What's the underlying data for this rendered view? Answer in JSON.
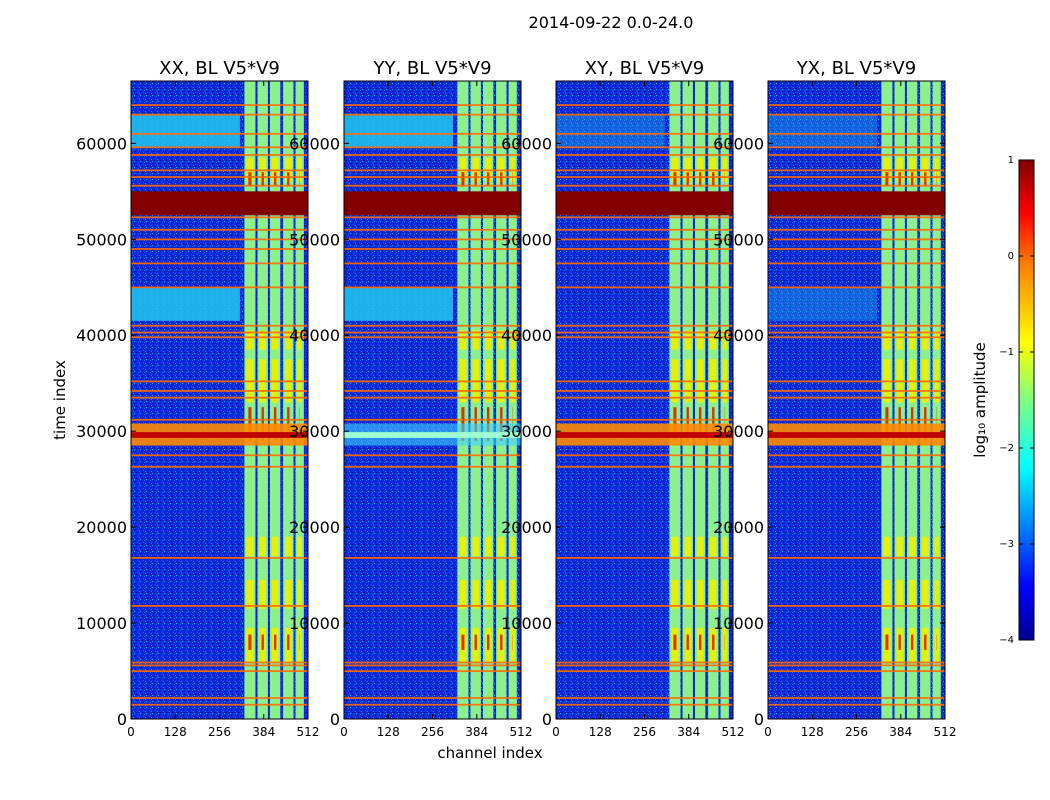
{
  "figure_title": "2014-09-22 0.0-24.0",
  "colors": {
    "background": "#0b22c8",
    "flag": "#ff6a00",
    "saturated": "#800000"
  },
  "chart_data": [
    {
      "type": "heatmap",
      "title": "XX, BL V5*V9",
      "xlabel": "channel index",
      "ylabel": "time index",
      "xlim": [
        0,
        512
      ],
      "ylim": [
        0,
        66500
      ],
      "xticks": [
        0,
        128,
        256,
        384,
        512
      ],
      "yticks": [
        0,
        10000,
        20000,
        30000,
        40000,
        50000,
        60000
      ],
      "colormap": "jet",
      "vmin": -4,
      "vmax": 1
    },
    {
      "type": "heatmap",
      "title": "YY, BL V5*V9",
      "xlabel": "channel index",
      "ylabel": "",
      "xlim": [
        0,
        512
      ],
      "ylim": [
        0,
        66500
      ],
      "xticks": [
        0,
        128,
        256,
        384,
        512
      ],
      "yticks": [
        0,
        10000,
        20000,
        30000,
        40000,
        50000,
        60000
      ],
      "colormap": "jet",
      "vmin": -4,
      "vmax": 1
    },
    {
      "type": "heatmap",
      "title": "XY, BL V5*V9",
      "xlabel": "",
      "ylabel": "",
      "xlim": [
        0,
        512
      ],
      "ylim": [
        0,
        66500
      ],
      "xticks": [
        0,
        128,
        256,
        384,
        512
      ],
      "yticks": [
        0,
        10000,
        20000,
        30000,
        40000,
        50000,
        60000
      ],
      "colormap": "jet",
      "vmin": -4,
      "vmax": 1
    },
    {
      "type": "heatmap",
      "title": "YX, BL V5*V9",
      "xlabel": "",
      "ylabel": "",
      "xlim": [
        0,
        512
      ],
      "ylim": [
        0,
        66500
      ],
      "xticks": [
        0,
        128,
        256,
        384,
        512
      ],
      "yticks": [
        0,
        10000,
        20000,
        30000,
        40000,
        50000,
        60000
      ],
      "colormap": "jet",
      "vmin": -4,
      "vmax": 1
    }
  ],
  "features": {
    "saturated_band": [
      52500,
      55000
    ],
    "bright_band": [
      28500,
      30800
    ],
    "flag_lines": [
      1500,
      2200,
      5000,
      5600,
      5900,
      11800,
      16800,
      26300,
      27500,
      31200,
      33500,
      34200,
      35200,
      39800,
      40300,
      41000,
      45000,
      47500,
      49000,
      50000,
      51000,
      52300,
      55600,
      56500,
      57200,
      58800,
      59600,
      61000,
      63000,
      64000
    ],
    "cyan_regions": [
      {
        "time": [
          41500,
          45000
        ],
        "chan": [
          0,
          315
        ]
      },
      {
        "time": [
          59500,
          63000
        ],
        "chan": [
          0,
          315
        ]
      }
    ],
    "active_columns": [
      {
        "chan": [
          328,
          360
        ]
      },
      {
        "chan": [
          366,
          396
        ]
      },
      {
        "chan": [
          402,
          432
        ]
      },
      {
        "chan": [
          440,
          470
        ]
      },
      {
        "chan": [
          476,
          500
        ]
      }
    ]
  },
  "colorbar": {
    "label": "log₁₀ amplitude",
    "ticks": [
      1,
      0,
      -1,
      -2,
      -3,
      -4
    ],
    "tick_labels": [
      "1",
      "0",
      "−1",
      "−2",
      "−3",
      "−4"
    ]
  }
}
